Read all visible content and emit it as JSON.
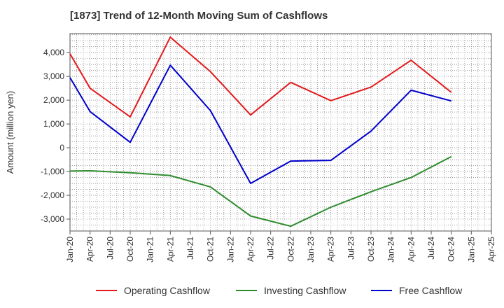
{
  "chart_data": {
    "type": "line",
    "title": "[1873]  Trend of 12-Month Moving Sum of Cashflows",
    "ylabel": "Amount (million yen)",
    "xlabel": "",
    "ylim": [
      -3500,
      4800
    ],
    "yticks": [
      -3000,
      -2000,
      -1000,
      0,
      1000,
      2000,
      3000,
      4000
    ],
    "ytick_labels": [
      "-3,000",
      "-2,000",
      "-1,000",
      "0",
      "1,000",
      "2,000",
      "3,000",
      "4,000"
    ],
    "categories": [
      "Jan-20",
      "Apr-20",
      "Jul-20",
      "Oct-20",
      "Jan-21",
      "Apr-21",
      "Jul-21",
      "Oct-21",
      "Jan-22",
      "Apr-22",
      "Jul-22",
      "Oct-22",
      "Jan-23",
      "Apr-23",
      "Jul-23",
      "Oct-23",
      "Jan-24",
      "Apr-24",
      "Jul-24",
      "Oct-24",
      "Jan-25",
      "Apr-25"
    ],
    "grid": true,
    "legend_position": "bottom",
    "series": [
      {
        "name": "Operating Cashflow",
        "color": "#e31a1c",
        "points": [
          [
            "Jan-20",
            3950
          ],
          [
            "Apr-20",
            2500
          ],
          [
            "Oct-20",
            1300
          ],
          [
            "Apr-21",
            4650
          ],
          [
            "Oct-21",
            3200
          ],
          [
            "Apr-22",
            1380
          ],
          [
            "Oct-22",
            2750
          ],
          [
            "Apr-23",
            1980
          ],
          [
            "Oct-23",
            2550
          ],
          [
            "Apr-24",
            3680
          ],
          [
            "Oct-24",
            2330
          ]
        ]
      },
      {
        "name": "Investing Cashflow",
        "color": "#2e8b2e",
        "points": [
          [
            "Jan-20",
            -980
          ],
          [
            "Apr-20",
            -970
          ],
          [
            "Oct-20",
            -1050
          ],
          [
            "Apr-21",
            -1170
          ],
          [
            "Oct-21",
            -1650
          ],
          [
            "Apr-22",
            -2870
          ],
          [
            "Oct-22",
            -3300
          ],
          [
            "Apr-23",
            -2500
          ],
          [
            "Oct-23",
            -1850
          ],
          [
            "Apr-24",
            -1250
          ],
          [
            "Oct-24",
            -370
          ]
        ]
      },
      {
        "name": "Free Cashflow",
        "color": "#0000cc",
        "points": [
          [
            "Jan-20",
            2950
          ],
          [
            "Apr-20",
            1520
          ],
          [
            "Oct-20",
            230
          ],
          [
            "Apr-21",
            3470
          ],
          [
            "Oct-21",
            1560
          ],
          [
            "Apr-22",
            -1500
          ],
          [
            "Oct-22",
            -560
          ],
          [
            "Apr-23",
            -530
          ],
          [
            "Oct-23",
            700
          ],
          [
            "Apr-24",
            2420
          ],
          [
            "Oct-24",
            1970
          ]
        ]
      }
    ]
  }
}
